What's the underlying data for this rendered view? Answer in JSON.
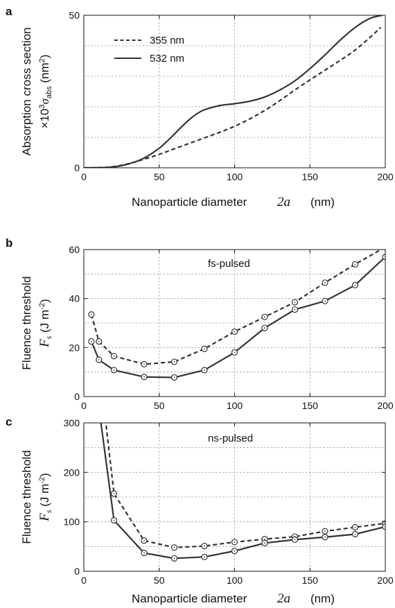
{
  "chart_data": [
    {
      "panel": "a",
      "type": "line",
      "title": "",
      "xlabel": "Nanoparticle diameter",
      "xlabel_math": "2a",
      "xlabel_unit": "(nm)",
      "ylabel": "Absorption cross section",
      "ylabel_line2": "×10³σabs (nm²)",
      "xlim": [
        0,
        200
      ],
      "ylim": [
        0,
        50
      ],
      "xticks": [
        0,
        50,
        100,
        150,
        200
      ],
      "yticks": [
        0,
        50
      ],
      "grid": true,
      "legend": "top-left",
      "series": [
        {
          "name": "355 nm",
          "style": "dashed",
          "x": [
            0,
            10,
            20,
            30,
            40,
            50,
            60,
            70,
            80,
            90,
            100,
            110,
            120,
            130,
            140,
            150,
            160,
            170,
            180,
            190,
            197
          ],
          "y": [
            0,
            0.05,
            0.4,
            1.4,
            2.8,
            4.4,
            6.2,
            8.0,
            9.8,
            11.6,
            13.6,
            16.0,
            18.8,
            22.0,
            25.5,
            28.8,
            32.0,
            35.2,
            38.6,
            42.8,
            46.0
          ]
        },
        {
          "name": "532 nm",
          "style": "solid",
          "x": [
            0,
            10,
            20,
            30,
            40,
            50,
            55,
            60,
            65,
            70,
            75,
            80,
            90,
            100,
            110,
            120,
            130,
            140,
            150,
            160,
            170,
            180,
            190,
            198
          ],
          "y": [
            0,
            0.05,
            0.3,
            1.3,
            3.2,
            6.4,
            8.6,
            11.0,
            13.5,
            15.8,
            17.7,
            19.0,
            20.4,
            21.0,
            21.8,
            23.2,
            25.5,
            28.5,
            32.5,
            37.0,
            41.8,
            46.0,
            49.0,
            50.0
          ]
        }
      ]
    },
    {
      "panel": "b",
      "type": "line",
      "title": "",
      "annotation": "fs-pulsed",
      "xlabel": "",
      "ylabel": "Fluence threshold",
      "ylabel_line2": "Fs (J m-2)",
      "xlim": [
        0,
        200
      ],
      "ylim": [
        0,
        60
      ],
      "xticks": [
        0,
        50,
        100,
        150,
        200
      ],
      "yticks": [
        0,
        20,
        40,
        60
      ],
      "grid": true,
      "series": [
        {
          "style": "dashed",
          "x": [
            5,
            10,
            20,
            40,
            60,
            80,
            100,
            120,
            140,
            160,
            180,
            200
          ],
          "y": [
            33.5,
            22.5,
            16.5,
            13.2,
            14.2,
            19.5,
            26.5,
            32.5,
            38.5,
            46.5,
            54.0,
            61.0
          ]
        },
        {
          "style": "solid",
          "x": [
            5,
            10,
            20,
            40,
            60,
            80,
            100,
            120,
            140,
            160,
            180,
            200
          ],
          "y": [
            22.5,
            15.0,
            10.8,
            8.0,
            7.8,
            10.8,
            18.0,
            28.0,
            35.5,
            39.0,
            45.5,
            57.0
          ]
        }
      ]
    },
    {
      "panel": "c",
      "type": "line",
      "title": "",
      "annotation": "ns-pulsed",
      "xlabel": "Nanoparticle diameter",
      "xlabel_math": "2a",
      "xlabel_unit": "(nm)",
      "ylabel": "Fluence threshold",
      "ylabel_line2": "Fs (J m-2)",
      "xlim": [
        0,
        200
      ],
      "ylim": [
        0,
        300
      ],
      "xticks": [
        0,
        50,
        100,
        150,
        200
      ],
      "yticks": [
        0,
        100,
        200,
        300
      ],
      "grid": true,
      "series": [
        {
          "style": "dashed",
          "x": [
            10,
            20,
            40,
            60,
            80,
            100,
            120,
            140,
            160,
            180,
            200
          ],
          "y": [
            420,
            157,
            62,
            48,
            51,
            59,
            65,
            70,
            81,
            89,
            97
          ]
        },
        {
          "style": "solid",
          "x": [
            10,
            20,
            40,
            60,
            80,
            100,
            120,
            140,
            160,
            180,
            200
          ],
          "y": [
            330,
            103,
            37,
            26,
            29,
            41,
            57,
            64,
            69,
            75,
            90
          ]
        }
      ]
    }
  ]
}
